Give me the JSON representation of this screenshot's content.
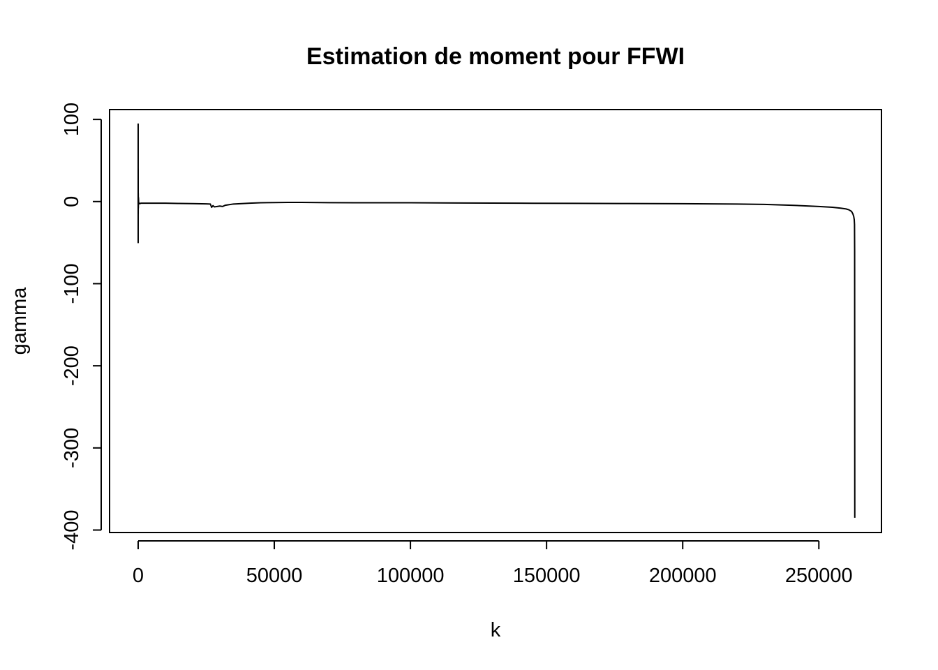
{
  "chart_data": {
    "type": "line",
    "title": "Estimation de moment pour FFWI",
    "xlabel": "k",
    "ylabel": "gamma",
    "xlim": [
      -10500,
      273000
    ],
    "ylim": [
      -403,
      112
    ],
    "x_ticks": [
      0,
      50000,
      100000,
      150000,
      200000,
      250000
    ],
    "x_tick_labels": [
      "0",
      "50000",
      "100000",
      "150000",
      "200000",
      "250000"
    ],
    "y_ticks": [
      100,
      0,
      -100,
      -200,
      -300,
      -400
    ],
    "y_tick_labels": [
      "100",
      "0",
      "-100",
      "-200",
      "-300",
      "-400"
    ],
    "grid": false,
    "legend": "none",
    "series": [
      {
        "color": "#000000",
        "x": [
          1,
          2,
          3,
          5,
          8,
          15,
          30,
          60,
          100,
          200,
          400,
          700,
          1000,
          1500,
          2500,
          5000,
          10000,
          15000,
          20000,
          25000,
          26500,
          27000,
          27500,
          28000,
          29000,
          30000,
          31000,
          32000,
          33000,
          35000,
          38000,
          41000,
          45000,
          50000,
          55000,
          60000,
          70000,
          80000,
          100000,
          120000,
          140000,
          160000,
          180000,
          200000,
          220000,
          230000,
          240000,
          250000,
          255000,
          258000,
          260000,
          261000,
          262000,
          262500,
          262800,
          263000,
          263100,
          263150,
          263200
        ],
        "y": [
          95,
          -50,
          80,
          -30,
          40,
          -15,
          10,
          -8,
          5,
          -3,
          -2,
          -2.5,
          -2,
          -2,
          -2,
          -2,
          -2,
          -2.3,
          -2.5,
          -2.8,
          -3,
          -7,
          -5,
          -6.5,
          -6,
          -5.5,
          -6,
          -4.5,
          -4,
          -3,
          -2.5,
          -2,
          -1.5,
          -1.2,
          -1,
          -1,
          -1.3,
          -1.5,
          -1.5,
          -1.8,
          -2,
          -2.2,
          -2.4,
          -2.6,
          -3,
          -3.5,
          -4.5,
          -6,
          -7,
          -8,
          -9,
          -10,
          -12,
          -15,
          -18,
          -22,
          -28,
          -60,
          -385
        ]
      }
    ]
  }
}
